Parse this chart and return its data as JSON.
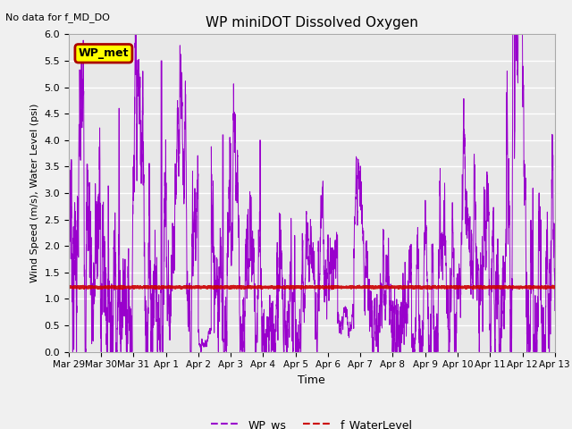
{
  "title": "WP miniDOT Dissolved Oxygen",
  "top_left_text": "No data for f_MD_DO",
  "xlabel": "Time",
  "ylabel": "Wind Speed (m/s), Water Level (psi)",
  "ylim": [
    0.0,
    6.0
  ],
  "yticks": [
    0.0,
    0.5,
    1.0,
    1.5,
    2.0,
    2.5,
    3.0,
    3.5,
    4.0,
    4.5,
    5.0,
    5.5,
    6.0
  ],
  "bg_color": "#f0f0f0",
  "plot_bg_color": "#e8e8e8",
  "ws_color": "#9900cc",
  "wl_color": "#cc0000",
  "wl_value": 1.22,
  "legend_ws": "WP_ws",
  "legend_wl": "f_WaterLevel",
  "inset_label": "WP_met",
  "inset_bg": "#ffff00",
  "inset_border": "#aa0000",
  "xtick_labels": [
    "Mar 29",
    "Mar 30",
    "Mar 31",
    "Apr 1",
    "Apr 2",
    "Apr 3",
    "Apr 4",
    "Apr 5",
    "Apr 6",
    "Apr 7",
    "Apr 8",
    "Apr 9",
    "Apr 10",
    "Apr 11",
    "Apr 12",
    "Apr 13"
  ],
  "num_days": 15,
  "seed": 7
}
